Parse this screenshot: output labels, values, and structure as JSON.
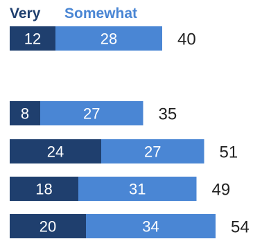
{
  "chart_data": {
    "type": "bar",
    "orientation": "horizontal",
    "stacked": true,
    "legend": {
      "placement": "top-left"
    },
    "grid": false,
    "categories": [
      "",
      "",
      "",
      "",
      ""
    ],
    "series": [
      {
        "name": "Very",
        "color": "#1f3f6e",
        "values": [
          12,
          8,
          24,
          18,
          20
        ]
      },
      {
        "name": "Somewhat",
        "color": "#4a86d4",
        "values": [
          28,
          27,
          27,
          31,
          34
        ]
      }
    ],
    "totals": [
      40,
      35,
      51,
      49,
      54
    ],
    "xlim": [
      0,
      54
    ]
  }
}
